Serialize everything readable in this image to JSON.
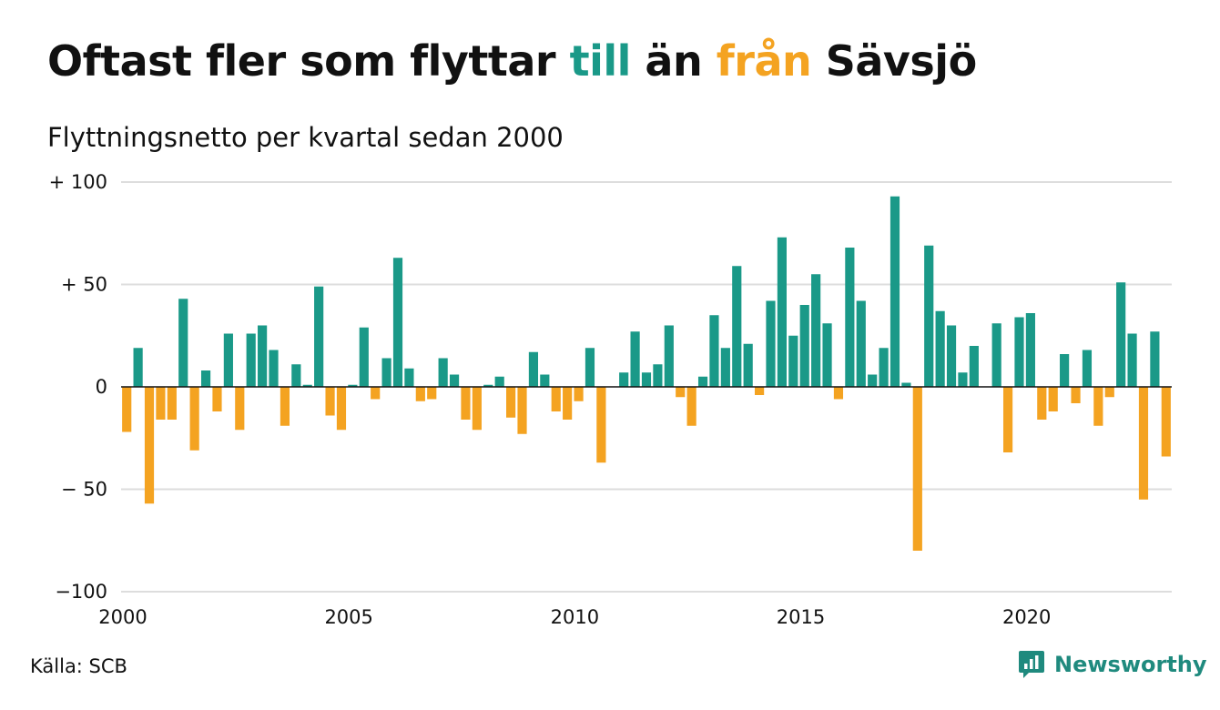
{
  "title": {
    "part1": "Oftast fler som flyttar ",
    "till": "till",
    "part2": " än ",
    "fran": "från",
    "part3": " Sävsjö"
  },
  "subtitle": "Flyttningsnetto per kvartal sedan 2000",
  "source": "Källa: SCB",
  "brand": {
    "name": "Newsworthy",
    "icon": "newsworthy-chart-bubble-icon"
  },
  "colors": {
    "positive": "#1a9988",
    "negative": "#f4a321",
    "text": "#111111",
    "grid": "#dddddd",
    "brand": "#1f8a7e"
  },
  "chart_data": {
    "type": "bar",
    "title": "Oftast fler som flyttar till än från Sävsjö",
    "subtitle": "Flyttningsnetto per kvartal sedan 2000",
    "x_start": 2000,
    "frequency": "quarterly",
    "ylim": [
      -100,
      100
    ],
    "yticks": [
      {
        "value": 100,
        "label": "+ 100"
      },
      {
        "value": 50,
        "label": "+  50"
      },
      {
        "value": 0,
        "label": "0"
      },
      {
        "value": -50,
        "label": "− 50"
      },
      {
        "value": -100,
        "label": "−100"
      }
    ],
    "xticks": [
      {
        "value": 2000,
        "label": "2000"
      },
      {
        "value": 2005,
        "label": "2005"
      },
      {
        "value": 2010,
        "label": "2010"
      },
      {
        "value": 2015,
        "label": "2015"
      },
      {
        "value": 2020,
        "label": "2020"
      }
    ],
    "grid": true,
    "values": [
      -22,
      19,
      -57,
      -16,
      -16,
      43,
      -31,
      8,
      -12,
      26,
      -21,
      26,
      30,
      18,
      -19,
      11,
      1,
      49,
      -14,
      -21,
      1,
      29,
      -6,
      14,
      63,
      9,
      -7,
      -6,
      14,
      6,
      -16,
      -21,
      1,
      5,
      -15,
      -23,
      17,
      6,
      -12,
      -16,
      -7,
      19,
      -37,
      0,
      7,
      27,
      7,
      11,
      30,
      -5,
      -19,
      5,
      35,
      19,
      59,
      21,
      -4,
      42,
      73,
      25,
      40,
      55,
      31,
      -6,
      68,
      42,
      6,
      19,
      93,
      2,
      -80,
      69,
      37,
      30,
      7,
      20,
      0,
      31,
      -32,
      34,
      36,
      -16,
      -12,
      16,
      -8,
      18,
      -19,
      -5,
      51,
      26,
      -55,
      27,
      -34
    ]
  }
}
